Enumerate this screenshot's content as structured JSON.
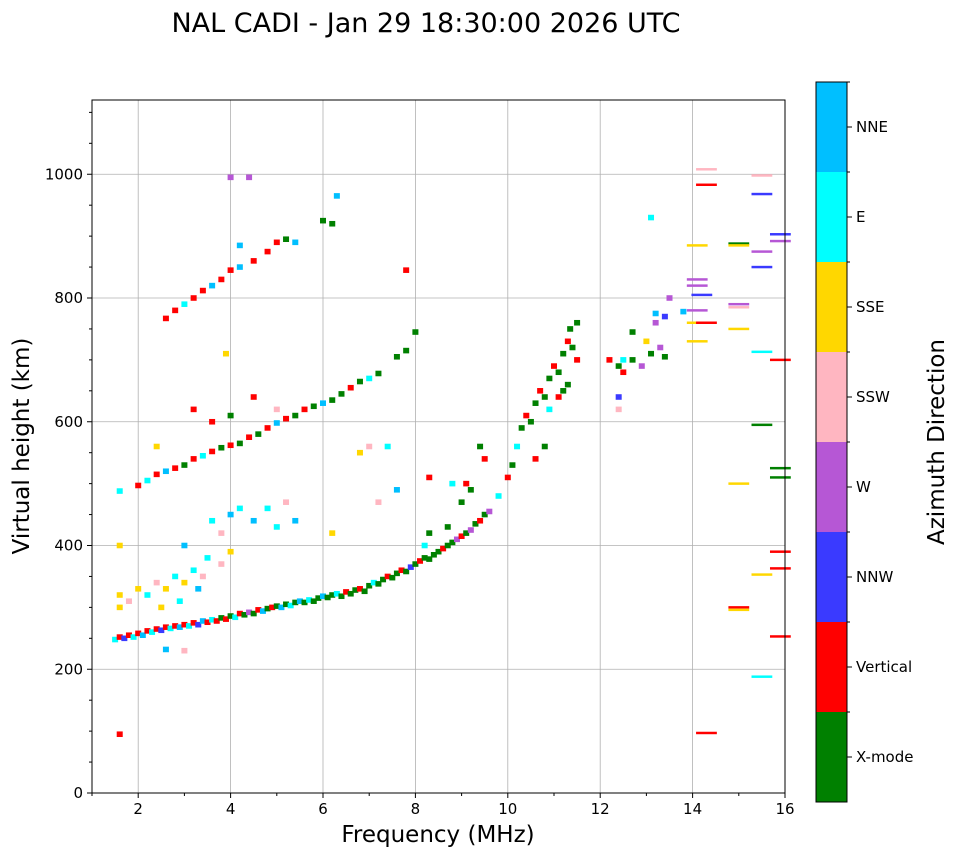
{
  "chart_data": {
    "type": "scatter",
    "title": "NAL CADI - Jan 29 18:30:00 2026 UTC",
    "xlabel": "Frequency (MHz)",
    "ylabel": "Virtual height (km)",
    "xlim": [
      1,
      16
    ],
    "ylim": [
      0,
      1120
    ],
    "xticks": [
      2,
      4,
      6,
      8,
      10,
      12,
      14,
      16
    ],
    "yticks": [
      0,
      200,
      400,
      600,
      800,
      1000
    ],
    "grid": true,
    "colorbar": {
      "label": "Azimuth Direction",
      "categories": [
        "X-mode",
        "Vertical",
        "NNW",
        "W",
        "SSW",
        "SSE",
        "E",
        "NNE"
      ],
      "colors": [
        "#008000",
        "#ff0000",
        "#3a3aff",
        "#b657d5",
        "#ffb6c1",
        "#ffd700",
        "#00ffff",
        "#00bfff"
      ]
    },
    "points_format": [
      "frequency_MHz",
      "virtual_height_km",
      "category_index"
    ],
    "points": [
      [
        1.5,
        248,
        6
      ],
      [
        1.6,
        252,
        1
      ],
      [
        1.7,
        250,
        2
      ],
      [
        1.8,
        255,
        1
      ],
      [
        1.9,
        252,
        6
      ],
      [
        2.0,
        258,
        1
      ],
      [
        2.1,
        255,
        7
      ],
      [
        2.2,
        262,
        1
      ],
      [
        2.3,
        260,
        6
      ],
      [
        2.4,
        265,
        1
      ],
      [
        2.5,
        263,
        2
      ],
      [
        2.6,
        268,
        1
      ],
      [
        2.7,
        266,
        6
      ],
      [
        2.8,
        270,
        1
      ],
      [
        2.9,
        268,
        7
      ],
      [
        3.0,
        272,
        1
      ],
      [
        3.1,
        270,
        6
      ],
      [
        3.2,
        275,
        1
      ],
      [
        3.3,
        272,
        2
      ],
      [
        3.4,
        278,
        7
      ],
      [
        3.5,
        276,
        1
      ],
      [
        3.6,
        280,
        6
      ],
      [
        3.7,
        278,
        1
      ],
      [
        3.8,
        283,
        0
      ],
      [
        3.9,
        281,
        1
      ],
      [
        4.0,
        286,
        0
      ],
      [
        4.1,
        284,
        6
      ],
      [
        4.2,
        290,
        1
      ],
      [
        4.3,
        288,
        0
      ],
      [
        4.4,
        292,
        3
      ],
      [
        4.5,
        290,
        0
      ],
      [
        4.6,
        296,
        1
      ],
      [
        4.7,
        294,
        7
      ],
      [
        4.8,
        298,
        0
      ],
      [
        4.9,
        300,
        1
      ],
      [
        5.0,
        302,
        0
      ],
      [
        5.1,
        300,
        7
      ],
      [
        5.2,
        305,
        0
      ],
      [
        5.3,
        303,
        6
      ],
      [
        5.4,
        308,
        0
      ],
      [
        5.5,
        310,
        7
      ],
      [
        5.6,
        308,
        0
      ],
      [
        5.7,
        312,
        6
      ],
      [
        5.8,
        310,
        0
      ],
      [
        5.9,
        315,
        0
      ],
      [
        6.0,
        318,
        7
      ],
      [
        6.1,
        316,
        0
      ],
      [
        6.2,
        320,
        0
      ],
      [
        6.3,
        322,
        6
      ],
      [
        6.4,
        318,
        0
      ],
      [
        6.5,
        325,
        1
      ],
      [
        6.6,
        322,
        0
      ],
      [
        6.7,
        328,
        0
      ],
      [
        6.8,
        330,
        1
      ],
      [
        6.9,
        326,
        0
      ],
      [
        7.0,
        335,
        0
      ],
      [
        7.1,
        340,
        6
      ],
      [
        7.2,
        338,
        0
      ],
      [
        7.3,
        345,
        0
      ],
      [
        7.4,
        350,
        1
      ],
      [
        7.5,
        348,
        0
      ],
      [
        7.6,
        355,
        0
      ],
      [
        7.7,
        360,
        1
      ],
      [
        7.8,
        358,
        0
      ],
      [
        7.9,
        365,
        2
      ],
      [
        8.0,
        370,
        0
      ],
      [
        8.1,
        375,
        1
      ],
      [
        8.2,
        380,
        0
      ],
      [
        8.3,
        378,
        0
      ],
      [
        8.4,
        385,
        0
      ],
      [
        8.5,
        390,
        0
      ],
      [
        8.6,
        395,
        1
      ],
      [
        8.7,
        400,
        0
      ],
      [
        8.8,
        405,
        0
      ],
      [
        8.9,
        410,
        3
      ],
      [
        9.0,
        415,
        1
      ],
      [
        9.1,
        420,
        0
      ],
      [
        9.2,
        425,
        3
      ],
      [
        9.3,
        435,
        0
      ],
      [
        9.4,
        440,
        1
      ],
      [
        9.5,
        450,
        0
      ],
      [
        9.6,
        455,
        3
      ],
      [
        9.8,
        480,
        6
      ],
      [
        10.0,
        510,
        1
      ],
      [
        10.1,
        530,
        0
      ],
      [
        10.2,
        560,
        6
      ],
      [
        10.3,
        590,
        0
      ],
      [
        10.4,
        610,
        1
      ],
      [
        10.5,
        600,
        0
      ],
      [
        10.6,
        630,
        0
      ],
      [
        10.7,
        650,
        1
      ],
      [
        10.8,
        640,
        0
      ],
      [
        10.9,
        670,
        0
      ],
      [
        11.0,
        690,
        1
      ],
      [
        11.1,
        680,
        0
      ],
      [
        11.2,
        710,
        0
      ],
      [
        11.3,
        730,
        1
      ],
      [
        11.35,
        750,
        0
      ],
      [
        11.4,
        720,
        0
      ],
      [
        11.5,
        760,
        0
      ],
      [
        11.5,
        700,
        1
      ],
      [
        11.3,
        660,
        0
      ],
      [
        11.1,
        640,
        1
      ],
      [
        10.8,
        560,
        0
      ],
      [
        10.6,
        540,
        1
      ],
      [
        10.9,
        620,
        6
      ],
      [
        11.2,
        650,
        0
      ],
      [
        8.2,
        400,
        6
      ],
      [
        8.3,
        420,
        0
      ],
      [
        8.7,
        430,
        0
      ],
      [
        9.0,
        470,
        0
      ],
      [
        9.1,
        500,
        1
      ],
      [
        9.4,
        560,
        0
      ],
      [
        9.5,
        540,
        1
      ],
      [
        8.8,
        500,
        6
      ],
      [
        9.2,
        490,
        0
      ],
      [
        12.2,
        700,
        1
      ],
      [
        12.4,
        690,
        0
      ],
      [
        12.5,
        680,
        1
      ],
      [
        12.7,
        700,
        0
      ],
      [
        12.9,
        690,
        3
      ],
      [
        13.1,
        710,
        0
      ],
      [
        13.3,
        720,
        3
      ],
      [
        13.4,
        705,
        0
      ],
      [
        13.0,
        730,
        5
      ],
      [
        13.2,
        760,
        3
      ],
      [
        13.4,
        770,
        2
      ],
      [
        13.5,
        800,
        3
      ],
      [
        13.2,
        775,
        7
      ],
      [
        12.4,
        640,
        2
      ],
      [
        12.4,
        620,
        4
      ],
      [
        12.7,
        745,
        0
      ],
      [
        13.8,
        778,
        7
      ],
      [
        12.5,
        700,
        6
      ],
      [
        1.6,
        300,
        5
      ],
      [
        1.6,
        320,
        5
      ],
      [
        1.8,
        310,
        4
      ],
      [
        2.0,
        330,
        5
      ],
      [
        2.2,
        320,
        6
      ],
      [
        2.4,
        340,
        4
      ],
      [
        2.6,
        330,
        5
      ],
      [
        2.8,
        350,
        6
      ],
      [
        3.0,
        340,
        5
      ],
      [
        3.2,
        360,
        6
      ],
      [
        3.4,
        350,
        4
      ],
      [
        2.5,
        300,
        5
      ],
      [
        2.9,
        310,
        6
      ],
      [
        3.3,
        330,
        7
      ],
      [
        1.6,
        400,
        5
      ],
      [
        3.0,
        400,
        7
      ],
      [
        3.5,
        380,
        6
      ],
      [
        3.8,
        370,
        4
      ],
      [
        4.0,
        390,
        5
      ],
      [
        3.6,
        440,
        6
      ],
      [
        4.0,
        450,
        7
      ],
      [
        4.2,
        460,
        6
      ],
      [
        4.5,
        440,
        7
      ],
      [
        3.8,
        420,
        4
      ],
      [
        4.8,
        460,
        6
      ],
      [
        5.2,
        470,
        4
      ],
      [
        5.4,
        440,
        7
      ],
      [
        5.0,
        430,
        6
      ],
      [
        6.2,
        420,
        5
      ],
      [
        7.2,
        470,
        4
      ],
      [
        7.6,
        490,
        7
      ],
      [
        8.3,
        510,
        1
      ],
      [
        7.0,
        560,
        4
      ],
      [
        6.8,
        550,
        5
      ],
      [
        7.4,
        560,
        6
      ],
      [
        1.6,
        488,
        6
      ],
      [
        1.6,
        95,
        1
      ],
      [
        3.0,
        230,
        4
      ],
      [
        2.6,
        232,
        7
      ],
      [
        2.0,
        497,
        1
      ],
      [
        2.2,
        505,
        6
      ],
      [
        2.4,
        515,
        1
      ],
      [
        2.6,
        520,
        7
      ],
      [
        2.8,
        525,
        1
      ],
      [
        3.0,
        530,
        0
      ],
      [
        3.2,
        540,
        1
      ],
      [
        3.4,
        545,
        6
      ],
      [
        3.6,
        552,
        1
      ],
      [
        3.8,
        558,
        0
      ],
      [
        4.0,
        562,
        1
      ],
      [
        4.2,
        565,
        0
      ],
      [
        4.4,
        575,
        1
      ],
      [
        4.6,
        580,
        0
      ],
      [
        4.8,
        590,
        1
      ],
      [
        5.0,
        598,
        7
      ],
      [
        5.2,
        605,
        1
      ],
      [
        5.4,
        610,
        0
      ],
      [
        5.6,
        620,
        1
      ],
      [
        5.8,
        625,
        0
      ],
      [
        6.0,
        630,
        7
      ],
      [
        6.2,
        635,
        0
      ],
      [
        6.4,
        645,
        0
      ],
      [
        6.6,
        655,
        1
      ],
      [
        6.8,
        665,
        0
      ],
      [
        7.0,
        670,
        6
      ],
      [
        7.2,
        678,
        0
      ],
      [
        7.6,
        705,
        0
      ],
      [
        7.8,
        715,
        0
      ],
      [
        8.0,
        745,
        0
      ],
      [
        3.2,
        620,
        1
      ],
      [
        3.6,
        600,
        1
      ],
      [
        4.0,
        610,
        0
      ],
      [
        4.5,
        640,
        1
      ],
      [
        5.0,
        620,
        4
      ],
      [
        2.4,
        560,
        5
      ],
      [
        3.9,
        710,
        5
      ],
      [
        2.6,
        767,
        1
      ],
      [
        2.8,
        780,
        1
      ],
      [
        3.0,
        790,
        6
      ],
      [
        3.2,
        800,
        1
      ],
      [
        3.4,
        812,
        1
      ],
      [
        3.6,
        820,
        7
      ],
      [
        3.8,
        830,
        1
      ],
      [
        4.0,
        845,
        1
      ],
      [
        4.2,
        850,
        7
      ],
      [
        4.5,
        860,
        1
      ],
      [
        4.8,
        875,
        1
      ],
      [
        5.0,
        890,
        1
      ],
      [
        5.2,
        895,
        0
      ],
      [
        5.4,
        890,
        7
      ],
      [
        4.2,
        885,
        7
      ],
      [
        6.3,
        965,
        7
      ],
      [
        6.0,
        925,
        0
      ],
      [
        6.2,
        920,
        0
      ],
      [
        7.8,
        845,
        1
      ],
      [
        4.0,
        995,
        3
      ],
      [
        4.4,
        995,
        3
      ],
      [
        13.1,
        930,
        6
      ],
      [
        14.1,
        885,
        5
      ],
      [
        14.1,
        830,
        3
      ],
      [
        14.1,
        820,
        3
      ],
      [
        14.2,
        805,
        2
      ],
      [
        14.1,
        780,
        3
      ],
      [
        14.1,
        760,
        5
      ],
      [
        14.1,
        730,
        5
      ],
      [
        14.3,
        1008,
        4
      ],
      [
        14.3,
        983,
        1
      ],
      [
        14.3,
        760,
        1
      ],
      [
        14.3,
        97,
        1
      ],
      [
        15.0,
        888,
        0
      ],
      [
        15.0,
        885,
        5
      ],
      [
        15.0,
        790,
        3
      ],
      [
        15.0,
        785,
        4
      ],
      [
        15.0,
        750,
        5
      ],
      [
        15.0,
        500,
        5
      ],
      [
        15.0,
        300,
        1
      ],
      [
        15.0,
        296,
        5
      ],
      [
        15.5,
        998,
        4
      ],
      [
        15.5,
        968,
        2
      ],
      [
        15.5,
        875,
        3
      ],
      [
        15.5,
        850,
        2
      ],
      [
        15.5,
        713,
        6
      ],
      [
        15.5,
        595,
        0
      ],
      [
        15.5,
        353,
        5
      ],
      [
        15.5,
        188,
        6
      ],
      [
        15.9,
        903,
        2
      ],
      [
        15.9,
        892,
        3
      ],
      [
        15.9,
        700,
        1
      ],
      [
        15.9,
        525,
        0
      ],
      [
        15.9,
        510,
        0
      ],
      [
        15.9,
        390,
        1
      ],
      [
        15.9,
        363,
        1
      ],
      [
        15.9,
        253,
        1
      ]
    ]
  }
}
